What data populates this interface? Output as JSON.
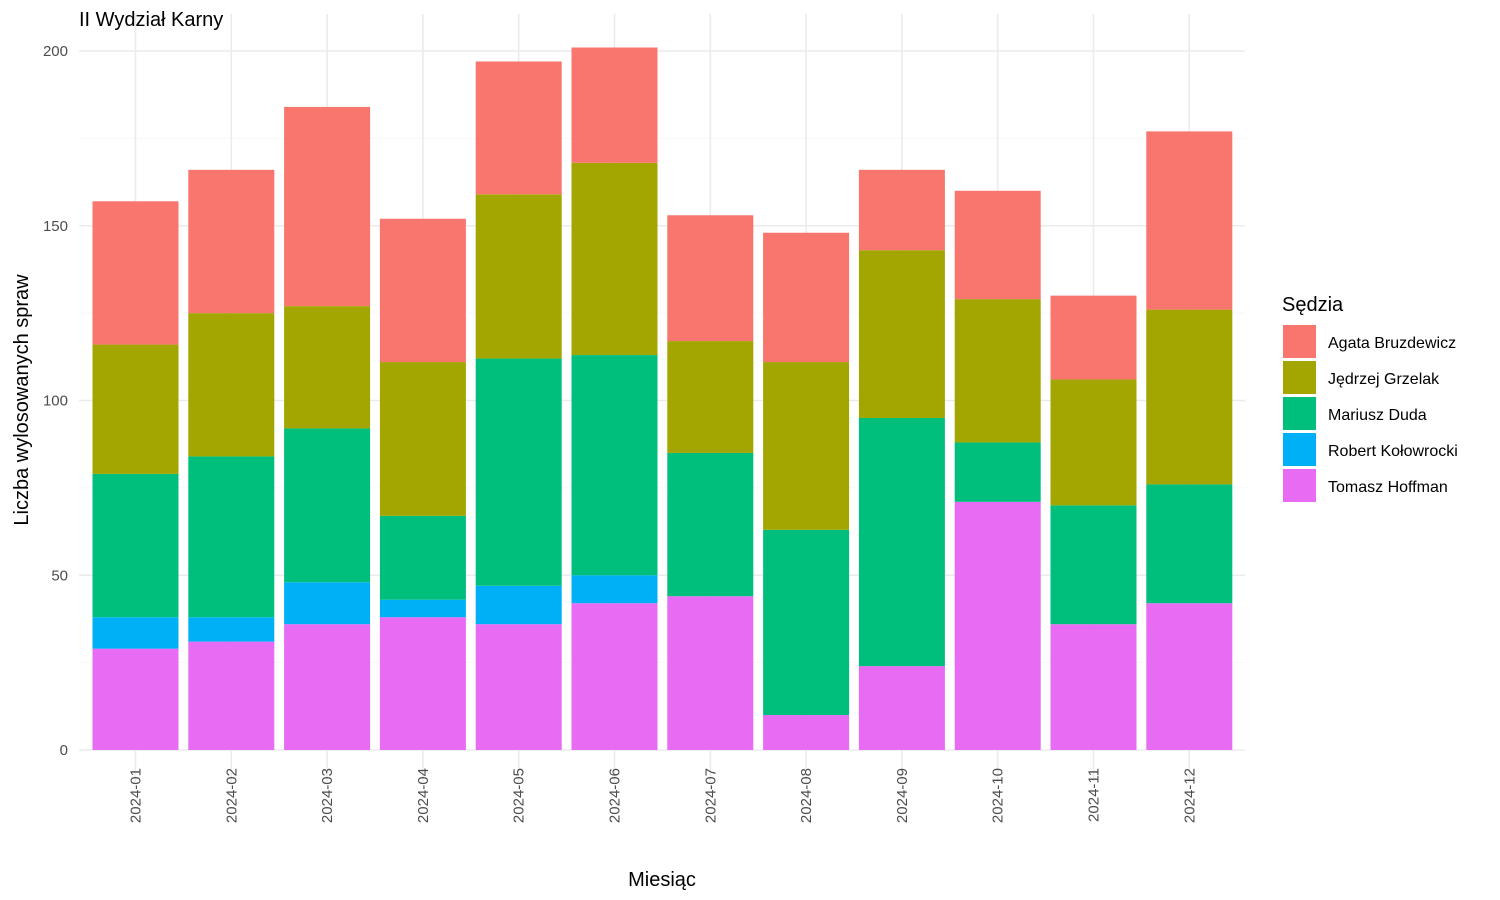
{
  "chart_data": {
    "type": "bar",
    "stacked": true,
    "title": "II Wydział Karny",
    "xlabel": "Miesiąc",
    "ylabel": "Liczba wylosowanych spraw",
    "ylim": [
      0,
      210
    ],
    "yticks": [
      0,
      50,
      100,
      150,
      200
    ],
    "grid": true,
    "legend": {
      "title": "Sędzia",
      "position": "right"
    },
    "categories": [
      "2024-01",
      "2024-02",
      "2024-03",
      "2024-04",
      "2024-05",
      "2024-06",
      "2024-07",
      "2024-08",
      "2024-09",
      "2024-10",
      "2024-11",
      "2024-12"
    ],
    "series": [
      {
        "name": "Agata Bruzdewicz",
        "color": "#F8766D",
        "values": [
          41,
          41,
          57,
          41,
          38,
          33,
          36,
          37,
          23,
          31,
          24,
          51
        ]
      },
      {
        "name": "Jędrzej Grzelak",
        "color": "#A3A500",
        "values": [
          37,
          41,
          35,
          44,
          47,
          55,
          32,
          48,
          48,
          41,
          36,
          50
        ]
      },
      {
        "name": "Mariusz Duda",
        "color": "#00BF7D",
        "values": [
          41,
          46,
          44,
          24,
          65,
          63,
          41,
          53,
          71,
          17,
          34,
          34
        ]
      },
      {
        "name": "Robert Kołowrocki",
        "color": "#00B0F6",
        "values": [
          9,
          7,
          12,
          5,
          11,
          8,
          0,
          0,
          0,
          0,
          0,
          0
        ]
      },
      {
        "name": "Tomasz Hoffman",
        "color": "#E76BF3",
        "values": [
          29,
          31,
          36,
          38,
          36,
          42,
          44,
          10,
          24,
          71,
          36,
          42
        ]
      }
    ]
  }
}
